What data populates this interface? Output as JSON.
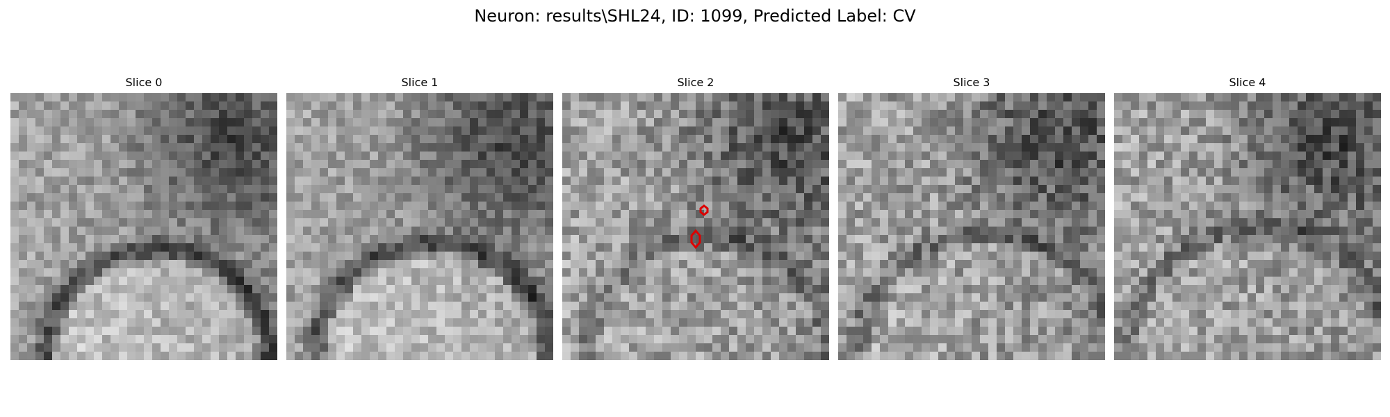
{
  "figure": {
    "title": "Neuron: results\\SHL24, ID: 1099, Predicted Label: CV"
  },
  "slices": [
    {
      "title": "Slice 0",
      "seed": 11,
      "annotated": false
    },
    {
      "title": "Slice 1",
      "seed": 23,
      "annotated": false
    },
    {
      "title": "Slice 2",
      "seed": 37,
      "annotated": true
    },
    {
      "title": "Slice 3",
      "seed": 41,
      "annotated": false
    },
    {
      "title": "Slice 4",
      "seed": 53,
      "annotated": false
    }
  ],
  "annotation_color": "#dd0000",
  "colormap": "gray"
}
